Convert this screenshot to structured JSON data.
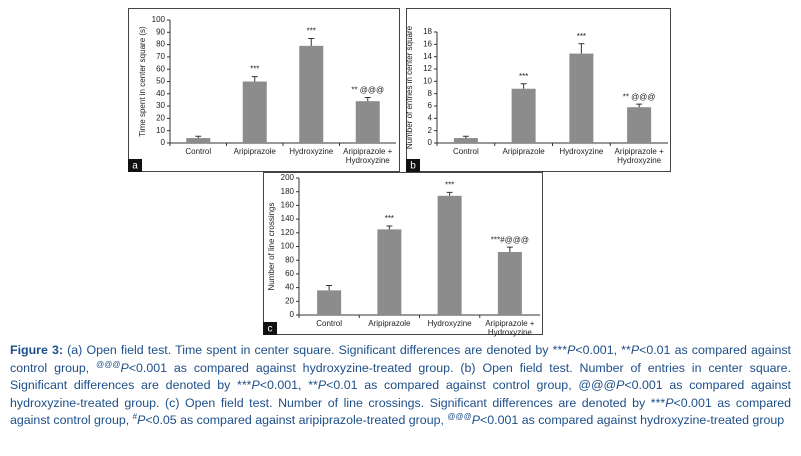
{
  "chart_data": [
    {
      "type": "bar",
      "panel": "a",
      "ylabel": "Time spent in center square (s)",
      "categories": [
        "Control",
        "Aripiprazole",
        "Hydroxyzine",
        "Aripiprazole +\nHydroxyzine"
      ],
      "values": [
        4,
        50,
        79,
        34
      ],
      "errors": [
        1.5,
        4,
        6,
        3
      ],
      "annotations": [
        null,
        "***",
        "***",
        "** @@@"
      ],
      "color": "#8c8c8c",
      "ylim": [
        0,
        100
      ],
      "yticks": [
        0,
        10,
        20,
        30,
        40,
        50,
        60,
        70,
        80,
        90,
        100
      ]
    },
    {
      "type": "bar",
      "panel": "b",
      "ylabel": "Number of entries in center square",
      "categories": [
        "Control",
        "Aripiprazole",
        "Hydroxyzine",
        "Aripiprazole +\nHydroxyzine"
      ],
      "values": [
        0.8,
        8.8,
        14.5,
        5.8
      ],
      "errors": [
        0.3,
        0.8,
        1.6,
        0.5
      ],
      "annotations": [
        null,
        "***",
        "***",
        "** @@@"
      ],
      "color": "#8c8c8c",
      "ylim": [
        0,
        18
      ],
      "yticks": [
        0,
        2,
        4,
        6,
        8,
        10,
        12,
        14,
        16,
        18
      ]
    },
    {
      "type": "bar",
      "panel": "c",
      "ylabel": "Number of line crossings",
      "categories": [
        "Control",
        "Aripiprazole",
        "Hydroxyzine",
        "Aripiprazole +\nHydroxyzine"
      ],
      "values": [
        36,
        125,
        174,
        92
      ],
      "errors": [
        7,
        5,
        5,
        7
      ],
      "annotations": [
        null,
        "***",
        "***",
        "***#@@@"
      ],
      "color": "#8c8c8c",
      "ylim": [
        0,
        200
      ],
      "yticks": [
        0,
        20,
        40,
        60,
        80,
        100,
        120,
        140,
        160,
        180,
        200
      ]
    }
  ],
  "caption": [
    "Figure 3:",
    " (a) Open field test. Time spent in center square. Significant differences are denoted by ***",
    "P",
    "<0.001, **",
    "P",
    "<0.01 as compared against control group, ",
    "@@@",
    "P",
    "<0.001 as compared against hydroxyzine-treated group. (b) Open field test. Number of entries in center square. Significant differences are denoted by ***",
    "P",
    "<0.001, **",
    "P",
    "<0.01 as compared against control group, @@@",
    "P",
    "<0.001 as compared against hydroxyzine-treated group. (c) Open field test. Number of line crossings. Significant differences are denoted by ***",
    "P",
    "<0.001 as compared against control group, ",
    "#",
    "P",
    "<0.05 as compared against aripiprazole-treated group, ",
    "@@@",
    "P",
    "<0.001 as compared against hydroxyzine-treated group"
  ]
}
